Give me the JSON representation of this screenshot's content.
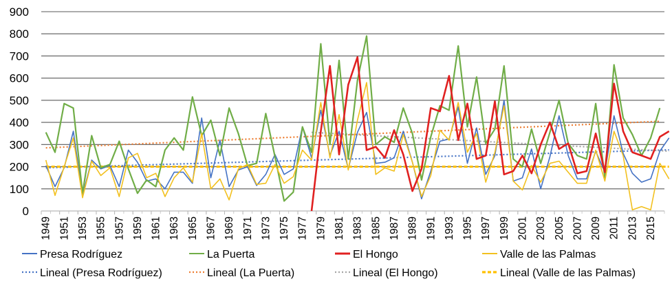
{
  "chart_data": {
    "type": "line",
    "title": "",
    "xlabel": "",
    "ylabel": "",
    "ylim": [
      0,
      900
    ],
    "yticks": [
      0,
      100,
      200,
      300,
      400,
      500,
      600,
      700,
      800,
      900
    ],
    "grid": true,
    "legend_position": "bottom",
    "x_tick_labels": [
      "1949",
      "1951",
      "1953",
      "1955",
      "1957",
      "1959",
      "1961",
      "1963",
      "1965",
      "1967",
      "1969",
      "1971",
      "1973",
      "1975",
      "1977",
      "1979",
      "1981",
      "1983",
      "1985",
      "1987",
      "1989",
      "1991",
      "1993",
      "1995",
      "1997",
      "1999",
      "2001",
      "2003",
      "2005",
      "2007",
      "2009",
      "2011",
      "2013",
      "2015"
    ],
    "series": [
      {
        "name": "Presa Rodríguez",
        "color": "#4472c4",
        "start_year": 1949,
        "values": [
          205,
          110,
          195,
          360,
          70,
          230,
          190,
          205,
          110,
          275,
          220,
          135,
          145,
          100,
          175,
          175,
          125,
          420,
          150,
          320,
          110,
          185,
          200,
          115,
          165,
          255,
          165,
          190,
          380,
          240,
          455,
          250,
          360,
          190,
          355,
          445,
          215,
          220,
          240,
          360,
          220,
          55,
          180,
          315,
          325,
          470,
          215,
          375,
          165,
          250,
          500,
          135,
          150,
          280,
          100,
          245,
          430,
          250,
          145,
          145,
          270,
          175,
          430,
          260,
          170,
          130,
          145,
          270,
          330
        ],
        "trend": [
          195,
          276
        ]
      },
      {
        "name": "La Puerta",
        "color": "#70ad47",
        "start_year": 1949,
        "values": [
          355,
          265,
          485,
          465,
          80,
          340,
          195,
          210,
          315,
          190,
          80,
          140,
          110,
          275,
          330,
          275,
          515,
          340,
          410,
          250,
          465,
          350,
          205,
          215,
          440,
          245,
          45,
          85,
          380,
          265,
          755,
          300,
          680,
          235,
          590,
          790,
          300,
          335,
          310,
          465,
          350,
          140,
          335,
          475,
          455,
          745,
          380,
          605,
          305,
          370,
          655,
          235,
          200,
          370,
          215,
          355,
          500,
          305,
          250,
          235,
          485,
          150,
          660,
          420,
          345,
          250,
          330,
          465
        ],
        "trend": [
          285,
          405
        ]
      },
      {
        "name": "El Hongo",
        "color": "#e02020",
        "start_year": 1978,
        "values": [
          0,
          360,
          655,
          255,
          570,
          695,
          275,
          290,
          240,
          365,
          255,
          90,
          190,
          465,
          450,
          610,
          320,
          485,
          235,
          250,
          495,
          165,
          180,
          250,
          170,
          300,
          400,
          280,
          305,
          170,
          180,
          350,
          175,
          575,
          360,
          265,
          250,
          235,
          335,
          360
        ],
        "trend": [
          355,
          270
        ],
        "trend_start_year": 1978
      },
      {
        "name": "Valle de las Palmas",
        "color": "#f2c01e",
        "start_year": 1949,
        "values": [
          230,
          70,
          200,
          330,
          60,
          225,
          160,
          195,
          65,
          240,
          260,
          150,
          170,
          65,
          150,
          195,
          130,
          350,
          100,
          145,
          50,
          190,
          210,
          120,
          125,
          210,
          125,
          155,
          275,
          230,
          490,
          240,
          435,
          185,
          410,
          580,
          165,
          195,
          180,
          345,
          220,
          65,
          160,
          365,
          320,
          490,
          265,
          350,
          130,
          265,
          475,
          135,
          95,
          205,
          130,
          215,
          225,
          175,
          125,
          125,
          275,
          135,
          360,
          250,
          5,
          20,
          5,
          215,
          145
        ],
        "trend": [
          200,
          200
        ]
      }
    ],
    "legend": {
      "row1": [
        "Presa Rodríguez",
        "La Puerta",
        "El Hongo",
        "Valle de las Palmas"
      ],
      "row2": [
        "Lineal (Presa Rodríguez)",
        "Lineal (La Puerta)",
        "Lineal (El Hongo)",
        "Lineal (Valle de las Palmas)"
      ]
    },
    "trend_colors": [
      "#4472c4",
      "#ed7d31",
      "#a5a5a5",
      "#ffc000"
    ]
  }
}
